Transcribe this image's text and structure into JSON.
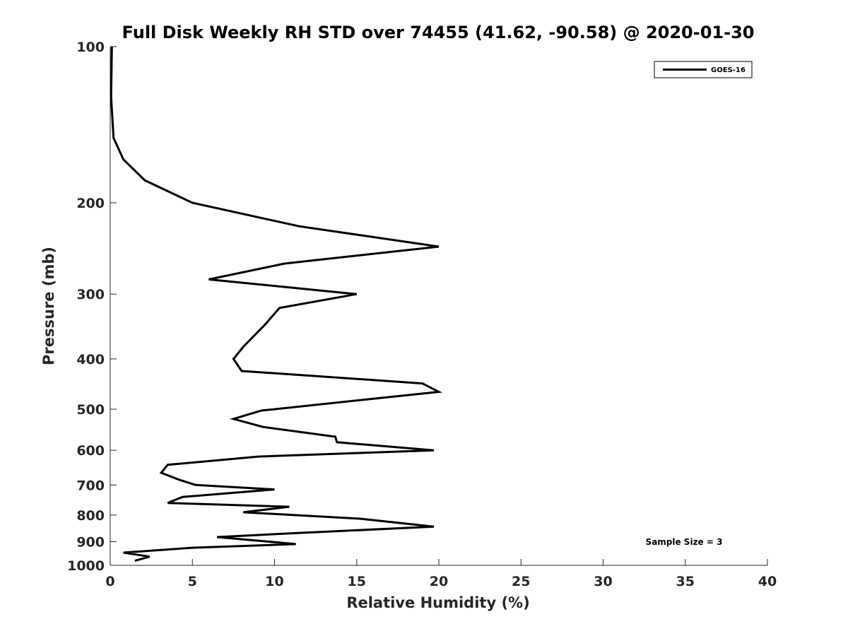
{
  "chart_data": {
    "type": "line",
    "title": "Full Disk Weekly RH STD over 74455 (41.62, -90.58) @ 2020-01-30",
    "xlabel": "Relative Humidity (%)",
    "ylabel": "Pressure (mb)",
    "xlim": [
      0,
      40
    ],
    "ylim": [
      100,
      1000
    ],
    "yscale": "log",
    "y_reversed": true,
    "grid": false,
    "legend_position": "top-right",
    "x_ticks": [
      "0",
      "5",
      "10",
      "15",
      "20",
      "25",
      "30",
      "35",
      "40"
    ],
    "y_ticks": [
      "100",
      "200",
      "300",
      "400",
      "500",
      "600",
      "700",
      "800",
      "900",
      "1000"
    ],
    "annotation": "Sample Size = 3",
    "series": [
      {
        "name": "GOES-16",
        "color": "#000000",
        "points": [
          [
            0.1,
            100
          ],
          [
            0.05,
            125
          ],
          [
            0.2,
            150
          ],
          [
            0.8,
            165
          ],
          [
            2.1,
            181
          ],
          [
            5.0,
            200
          ],
          [
            11.5,
            222
          ],
          [
            20.0,
            243
          ],
          [
            10.6,
            262
          ],
          [
            6.0,
            281
          ],
          [
            15.0,
            300
          ],
          [
            10.3,
            319
          ],
          [
            9.4,
            344
          ],
          [
            8.1,
            379
          ],
          [
            7.5,
            400
          ],
          [
            8.0,
            422
          ],
          [
            19.0,
            446
          ],
          [
            20.0,
            463
          ],
          [
            15.3,
            480
          ],
          [
            9.2,
            503
          ],
          [
            7.5,
            522
          ],
          [
            9.3,
            541
          ],
          [
            13.7,
            565
          ],
          [
            13.8,
            579
          ],
          [
            19.7,
            600
          ],
          [
            9.0,
            617
          ],
          [
            3.5,
            640
          ],
          [
            3.1,
            663
          ],
          [
            4.2,
            684
          ],
          [
            5.2,
            700
          ],
          [
            10.0,
            714
          ],
          [
            4.4,
            738
          ],
          [
            3.5,
            758
          ],
          [
            10.9,
            771
          ],
          [
            8.1,
            790
          ],
          [
            15.2,
            813
          ],
          [
            19.7,
            842
          ],
          [
            11.2,
            867
          ],
          [
            6.5,
            882
          ],
          [
            11.3,
            910
          ],
          [
            5.0,
            925
          ],
          [
            0.8,
            945
          ],
          [
            2.4,
            962
          ],
          [
            1.5,
            980
          ]
        ]
      }
    ]
  }
}
